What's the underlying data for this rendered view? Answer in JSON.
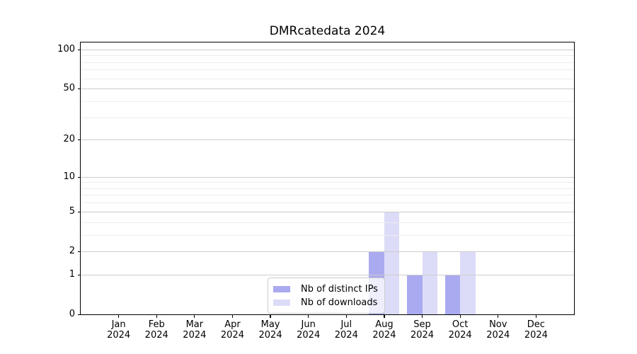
{
  "figure": {
    "background": "#ffffff"
  },
  "chart_data": {
    "type": "bar",
    "title": "DMRcatedata 2024",
    "year": "2024",
    "categories": [
      "Jan",
      "Feb",
      "Mar",
      "Apr",
      "May",
      "Jun",
      "Jul",
      "Aug",
      "Sep",
      "Oct",
      "Nov",
      "Dec"
    ],
    "series": [
      {
        "name": "Nb of distinct IPs",
        "color": "#aaaaf0",
        "values": [
          0,
          0,
          0,
          0,
          0,
          0,
          0,
          2,
          1,
          1,
          0,
          0
        ]
      },
      {
        "name": "Nb of downloads",
        "color": "#dcdcf8",
        "values": [
          0,
          0,
          0,
          0,
          0,
          0,
          0,
          5,
          2,
          2,
          0,
          0
        ]
      }
    ],
    "xlabel": "",
    "ylabel": "",
    "y_scale": "log10(value+1)",
    "y_ticks": [
      0,
      1,
      2,
      5,
      10,
      20,
      50,
      100
    ],
    "y_tick_labels": [
      "0",
      "1",
      "2",
      "5",
      "10",
      "20",
      "50",
      "100"
    ],
    "y_minor_gridlines": [
      3,
      4,
      6,
      7,
      8,
      9,
      30,
      40,
      60,
      70,
      80,
      90
    ],
    "ylim": [
      0,
      113
    ],
    "grid": "horizontal",
    "legend_position": "lower-center"
  },
  "legend": {
    "items": [
      {
        "label": "Nb of distinct IPs",
        "color": "#aaaaf0"
      },
      {
        "label": "Nb of downloads",
        "color": "#dcdcf8"
      }
    ]
  },
  "colors": {
    "axis": "#000000",
    "grid_major": "#cccccc",
    "grid_minor": "#ededed",
    "text": "#000000"
  }
}
